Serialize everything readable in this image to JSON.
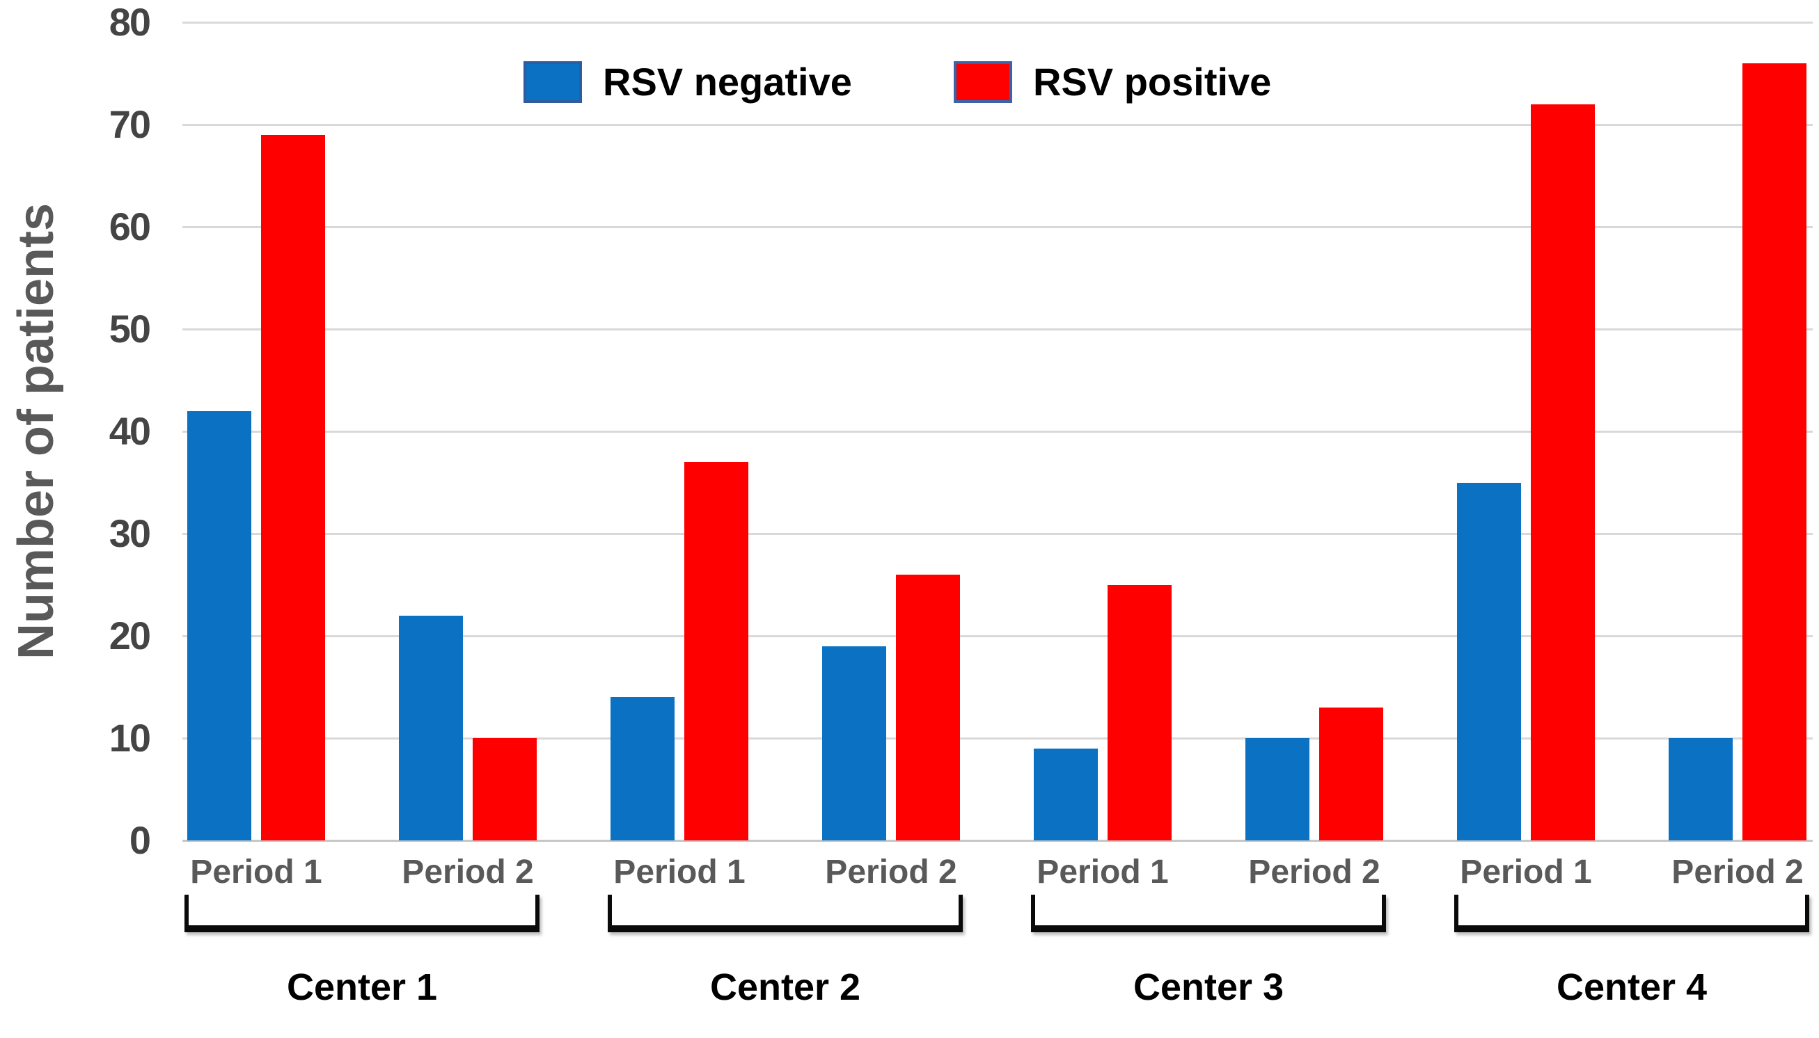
{
  "chart_data": {
    "type": "bar",
    "title": "",
    "xlabel": "",
    "ylabel": "Number of patients",
    "ylim": [
      0,
      80
    ],
    "ytick_step": 10,
    "yticks": [
      0,
      10,
      20,
      30,
      40,
      50,
      60,
      70,
      80
    ],
    "grid": true,
    "legend_position": "top-center",
    "categories": [
      "Period 1",
      "Period 2",
      "Period 1",
      "Period 2",
      "Period 1",
      "Period 2",
      "Period 1",
      "Period 2"
    ],
    "group_labels": [
      "Center 1",
      "Center 2",
      "Center 3",
      "Center 4"
    ],
    "series": [
      {
        "name": "RSV negative",
        "color": "#0A71C3",
        "swatch_border": "#2E5C9E",
        "values": [
          42,
          22,
          14,
          19,
          9,
          10,
          35,
          10
        ]
      },
      {
        "name": "RSV positive",
        "color": "#FE0000",
        "swatch_border": "#3C63A8",
        "values": [
          69,
          10,
          37,
          26,
          25,
          13,
          72,
          76
        ]
      }
    ]
  },
  "colors": {
    "background": "#FFFFFF",
    "gridline": "#D9D9D9",
    "axis_baseline": "#C7C7C7",
    "tick_label": "#444444",
    "axis_title": "#595959",
    "period_label": "#595959",
    "center_label": "#000000",
    "legend_text": "#000000",
    "bracket": "#0A0A0A"
  }
}
